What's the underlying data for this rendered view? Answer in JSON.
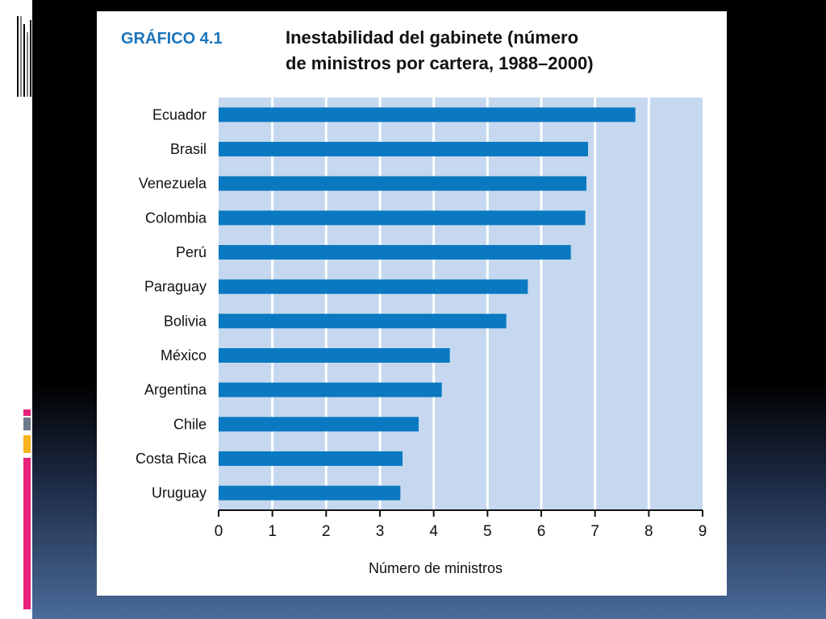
{
  "colors": {
    "bar": "#0a79c1",
    "plot_bg": "#c5d8ef",
    "grid": "#ffffff",
    "title_label": "#1b75bb",
    "text": "#111111",
    "accent_pink": "#e8217a",
    "accent_gray": "#6d7a8c",
    "accent_yellow": "#f7b21d"
  },
  "slide": {
    "figure_label": "GRÁFICO 4.1",
    "title_line1": "Inestabilidad del gabinete (número",
    "title_line2": "de ministros por cartera, 1988–2000)"
  },
  "chart_data": {
    "type": "bar",
    "orientation": "horizontal",
    "categories": [
      "Ecuador",
      "Brasil",
      "Venezuela",
      "Colombia",
      "Perú",
      "Paraguay",
      "Bolivia",
      "México",
      "Argentina",
      "Chile",
      "Costa Rica",
      "Uruguay"
    ],
    "values": [
      7.75,
      6.87,
      6.84,
      6.82,
      6.55,
      5.75,
      5.35,
      4.3,
      4.15,
      3.72,
      3.42,
      3.38
    ],
    "title": "Inestabilidad del gabinete (número de ministros por cartera, 1988–2000)",
    "xlabel": "Número de ministros",
    "ylabel": "",
    "xlim": [
      0,
      9
    ],
    "xticks": [
      "0",
      "1",
      "2",
      "3",
      "4",
      "5",
      "6",
      "7",
      "8",
      "9"
    ],
    "grid": true,
    "legend": "none"
  }
}
